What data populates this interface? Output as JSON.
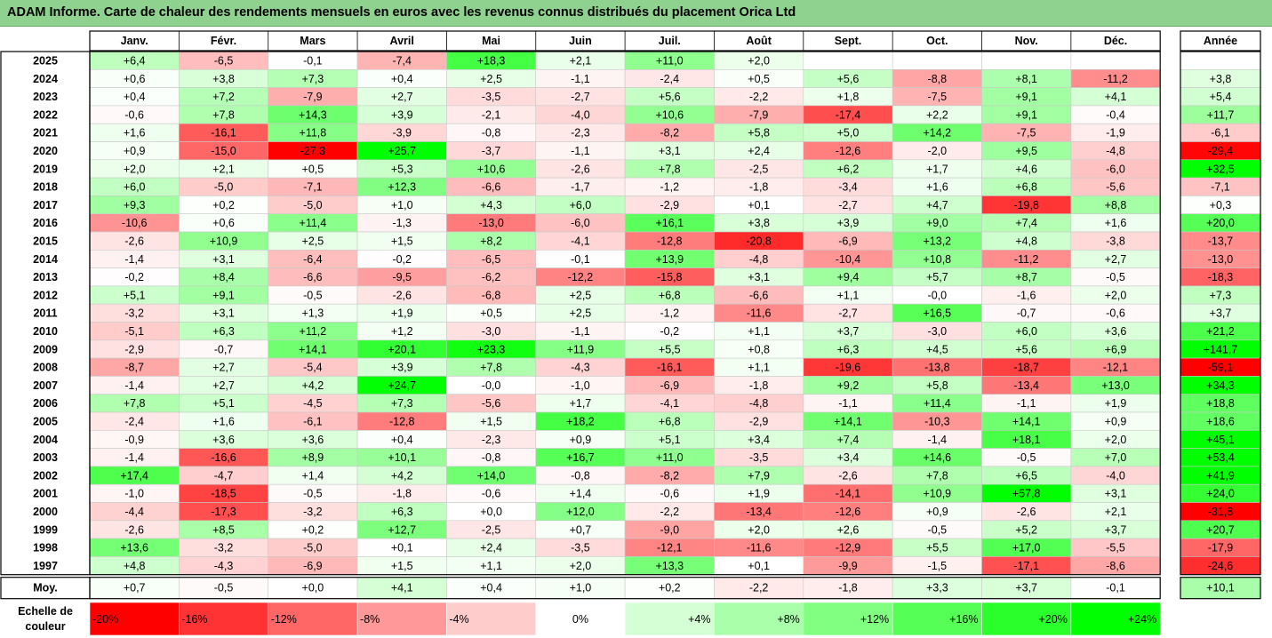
{
  "title": "ADAM Informe. Carte de chaleur des rendements mensuels en euros avec les revenus connus distribués du placement Orica Ltd",
  "chart_data": {
    "type": "heatmap",
    "title": "ADAM Informe. Carte de chaleur des rendements mensuels en euros avec les revenus connus distribués du placement Orica Ltd",
    "months": [
      "Janv.",
      "Févr.",
      "Mars",
      "Avril",
      "Mai",
      "Juin",
      "Juil.",
      "Août",
      "Sept.",
      "Oct.",
      "Nov.",
      "Déc."
    ],
    "year_header": "Année",
    "rows": [
      {
        "year": "2025",
        "values": [
          "+6,4",
          "-6,5",
          "-0,1",
          "-7,4",
          "+18,3",
          "+2,1",
          "+11,0",
          "+2,0",
          "",
          "",
          "",
          ""
        ],
        "annual": ""
      },
      {
        "year": "2024",
        "values": [
          "+0,6",
          "+3,8",
          "+7,3",
          "+0,4",
          "+2,5",
          "-1,1",
          "-2,4",
          "+0,5",
          "+5,6",
          "-8,8",
          "+8,1",
          "-11,2"
        ],
        "annual": "+3,8"
      },
      {
        "year": "2023",
        "values": [
          "+0,4",
          "+7,2",
          "-7,9",
          "+2,7",
          "-3,5",
          "-2,7",
          "+5,6",
          "-2,2",
          "+1,8",
          "-7,5",
          "+9,1",
          "+4,1"
        ],
        "annual": "+5,4"
      },
      {
        "year": "2022",
        "values": [
          "-0,6",
          "+7,8",
          "+14,3",
          "+3,9",
          "-2,1",
          "-4,0",
          "+10,6",
          "-7,9",
          "-17,4",
          "+2,2",
          "+9,1",
          "-0,4"
        ],
        "annual": "+11,7"
      },
      {
        "year": "2021",
        "values": [
          "+1,6",
          "-16,1",
          "+11,8",
          "-3,9",
          "-0,8",
          "-2,3",
          "-8,2",
          "+5,8",
          "+5,0",
          "+14,2",
          "-7,5",
          "-1,9"
        ],
        "annual": "-6,1"
      },
      {
        "year": "2020",
        "values": [
          "+0,9",
          "-15,0",
          "-27,3",
          "+25,7",
          "-3,7",
          "-1,1",
          "+3,1",
          "+2,4",
          "-12,6",
          "-2,0",
          "+9,5",
          "-4,8"
        ],
        "annual": "-29,4"
      },
      {
        "year": "2019",
        "values": [
          "+2,0",
          "+2,1",
          "+0,5",
          "+5,3",
          "+10,6",
          "-2,6",
          "+7,8",
          "-2,5",
          "+6,2",
          "+1,7",
          "+4,6",
          "-6,0"
        ],
        "annual": "+32,5"
      },
      {
        "year": "2018",
        "values": [
          "+6,0",
          "-5,0",
          "-7,1",
          "+12,3",
          "-6,6",
          "-1,7",
          "-1,2",
          "-1,8",
          "-3,4",
          "+1,6",
          "+6,8",
          "-5,6"
        ],
        "annual": "-7,1"
      },
      {
        "year": "2017",
        "values": [
          "+9,3",
          "+0,2",
          "-5,0",
          "+1,0",
          "+4,3",
          "+6,0",
          "-2,9",
          "+0,1",
          "-2,7",
          "+4,7",
          "-19,8",
          "+8,8"
        ],
        "annual": "+0,3"
      },
      {
        "year": "2016",
        "values": [
          "-10,6",
          "+0,6",
          "+11,4",
          "-1,3",
          "-13,0",
          "-6,0",
          "+16,1",
          "+3,8",
          "+3,9",
          "+9,0",
          "+7,4",
          "+1,6"
        ],
        "annual": "+20,0"
      },
      {
        "year": "2015",
        "values": [
          "-2,6",
          "+10,9",
          "+2,5",
          "+1,5",
          "+8,2",
          "-4,1",
          "-12,8",
          "-20,8",
          "-6,9",
          "+13,2",
          "+4,8",
          "-3,8"
        ],
        "annual": "-13,7"
      },
      {
        "year": "2014",
        "values": [
          "-1,4",
          "+3,1",
          "-6,4",
          "-0,2",
          "-6,5",
          "-0,1",
          "+13,9",
          "-4,8",
          "-10,4",
          "+10,8",
          "-11,2",
          "+2,7"
        ],
        "annual": "-13,0"
      },
      {
        "year": "2013",
        "values": [
          "-0,2",
          "+8,4",
          "-6,6",
          "-9,5",
          "-6,2",
          "-12,2",
          "-15,8",
          "+3,1",
          "+9,4",
          "+5,7",
          "+8,7",
          "-0,5"
        ],
        "annual": "-18,3"
      },
      {
        "year": "2012",
        "values": [
          "+5,1",
          "+9,1",
          "-0,5",
          "-2,6",
          "-6,8",
          "+2,5",
          "+6,8",
          "-6,6",
          "+1,1",
          "-0,0",
          "-1,6",
          "+2,0"
        ],
        "annual": "+7,3"
      },
      {
        "year": "2011",
        "values": [
          "-3,2",
          "+3,1",
          "+1,3",
          "+1,9",
          "+0,5",
          "+2,5",
          "-1,2",
          "-11,6",
          "-2,7",
          "+16,5",
          "-0,7",
          "-0,6"
        ],
        "annual": "+3,7"
      },
      {
        "year": "2010",
        "values": [
          "-5,1",
          "+6,3",
          "+11,2",
          "+1,2",
          "-3,0",
          "-1,1",
          "-0,2",
          "+1,1",
          "+3,7",
          "-3,0",
          "+6,0",
          "+3,6"
        ],
        "annual": "+21,2"
      },
      {
        "year": "2009",
        "values": [
          "-2,9",
          "-0,7",
          "+14,1",
          "+20,1",
          "+23,3",
          "+11,9",
          "+5,5",
          "+0,8",
          "+6,3",
          "+4,5",
          "+5,6",
          "+6,9"
        ],
        "annual": "+141,7"
      },
      {
        "year": "2008",
        "values": [
          "-8,7",
          "+2,7",
          "-5,4",
          "+3,9",
          "+7,8",
          "-4,3",
          "-16,1",
          "+1,1",
          "-19,6",
          "-13,8",
          "-18,7",
          "-12,1"
        ],
        "annual": "-59,1"
      },
      {
        "year": "2007",
        "values": [
          "-1,4",
          "+2,7",
          "+4,2",
          "+24,7",
          "-0,0",
          "-1,0",
          "-6,9",
          "-1,8",
          "+9,2",
          "+5,8",
          "-13,4",
          "+13,0"
        ],
        "annual": "+34,3"
      },
      {
        "year": "2006",
        "values": [
          "+7,8",
          "+5,1",
          "-4,5",
          "+7,3",
          "-5,6",
          "+1,7",
          "-4,1",
          "-4,8",
          "-1,1",
          "+11,4",
          "-1,1",
          "+1,9"
        ],
        "annual": "+18,8"
      },
      {
        "year": "2005",
        "values": [
          "-2,4",
          "+1,6",
          "-6,1",
          "-12,8",
          "+1,5",
          "+18,2",
          "+6,8",
          "-2,9",
          "+14,1",
          "-10,3",
          "+14,1",
          "+0,9"
        ],
        "annual": "+18,6"
      },
      {
        "year": "2004",
        "values": [
          "-0,9",
          "+3,6",
          "+3,6",
          "+0,4",
          "-2,3",
          "+0,9",
          "+5,1",
          "+3,4",
          "+7,4",
          "-1,4",
          "+18,1",
          "+2,0"
        ],
        "annual": "+45,1"
      },
      {
        "year": "2003",
        "values": [
          "-1,4",
          "-16,6",
          "+8,9",
          "+10,1",
          "-0,8",
          "+16,7",
          "+11,0",
          "-3,5",
          "+3,4",
          "+14,6",
          "-0,5",
          "+7,0"
        ],
        "annual": "+53,4"
      },
      {
        "year": "2002",
        "values": [
          "+17,4",
          "-4,7",
          "+1,4",
          "+4,2",
          "+14,0",
          "-0,8",
          "-8,2",
          "+7,9",
          "-2,6",
          "+7,8",
          "+6,5",
          "-4,0"
        ],
        "annual": "+41,9"
      },
      {
        "year": "2001",
        "values": [
          "-1,0",
          "-18,5",
          "-0,5",
          "-1,8",
          "-0,6",
          "+1,4",
          "-0,6",
          "+1,9",
          "-14,1",
          "+10,9",
          "+57,8",
          "+3,1"
        ],
        "annual": "+24,0"
      },
      {
        "year": "2000",
        "values": [
          "-4,4",
          "-17,3",
          "-3,2",
          "+6,3",
          "+0,0",
          "+12,0",
          "-2,2",
          "-13,4",
          "-12,6",
          "+0,9",
          "-2,6",
          "+2,1"
        ],
        "annual": "-31,8"
      },
      {
        "year": "1999",
        "values": [
          "-2,6",
          "+8,5",
          "+0,2",
          "+12,7",
          "-2,5",
          "+0,7",
          "-9,0",
          "+2,0",
          "+2,6",
          "-0,5",
          "+5,2",
          "+3,7"
        ],
        "annual": "+20,7"
      },
      {
        "year": "1998",
        "values": [
          "+13,6",
          "-3,2",
          "-5,0",
          "+0,1",
          "+2,4",
          "-3,5",
          "-12,1",
          "-11,6",
          "-12,9",
          "+5,5",
          "+17,0",
          "-5,5"
        ],
        "annual": "-17,9"
      },
      {
        "year": "1997",
        "values": [
          "+4,8",
          "-4,3",
          "-6,9",
          "+1,5",
          "+1,1",
          "+2,0",
          "+13,3",
          "+0,1",
          "-9,9",
          "-1,5",
          "-17,1",
          "-8,6"
        ],
        "annual": "-24,6"
      }
    ],
    "average": {
      "label": "Moy.",
      "values": [
        "+0,7",
        "-0,5",
        "+0,0",
        "+4,1",
        "+0,4",
        "+1,0",
        "+0,2",
        "-2,2",
        "-1,8",
        "+3,3",
        "+3,7",
        "-0,1"
      ],
      "annual": "+10,1"
    },
    "scale": {
      "label_line1": "Echelle de",
      "label_line2": "couleur",
      "stops": [
        "-20%",
        "-16%",
        "-12%",
        "-8%",
        "-4%",
        "0%",
        "+4%",
        "+8%",
        "+12%",
        "+16%",
        "+20%",
        "+24%"
      ],
      "stop_values": [
        -20,
        -16,
        -12,
        -8,
        -4,
        0,
        4,
        8,
        12,
        16,
        20,
        24
      ]
    },
    "colors": {
      "negative_max": "#ff0000",
      "neutral": "#ffffff",
      "positive_max": "#00ff00",
      "title_bg": "#8fd18f",
      "annual_col_bg": "#a8e8a8"
    }
  }
}
